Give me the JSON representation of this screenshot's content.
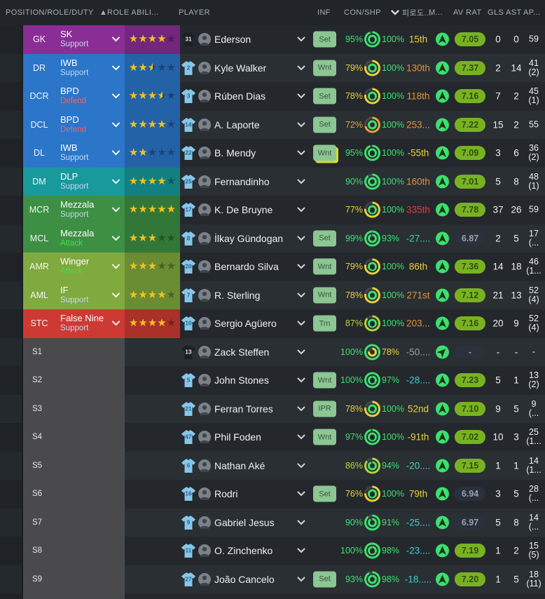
{
  "header": {
    "col_position": "POSITION/ROLE/DUTY",
    "sort_asc_icon": "▲",
    "col_role_ability": "ROLE ABILI...",
    "col_player": "PLAYER",
    "col_inf": "INF",
    "col_conshp": "CON/SHP",
    "col_fatigue": "피로도...",
    "col_morale": "M...",
    "col_avrat": "AV RAT",
    "col_gls": "GLS",
    "col_ast": "AST",
    "col_ap": "AP..."
  },
  "icons": {
    "sort_ascending": "triangle-up",
    "sort_descending": "chevron-down",
    "role_dropdown": "chevron-down",
    "player_dropdown": "chevron-down",
    "morale_up": "navigation-arrow-up",
    "morale_good": "navigation-arrow-upright",
    "condition_ring": "double-ring-donut",
    "shirt": "kit-shirt",
    "photo": "person-silhouette"
  },
  "colors": {
    "row_bg_a": "#24282d",
    "row_bg_b": "#2a2f34",
    "purple": "#8a2e96",
    "blue": "#2b76c9",
    "teal": "#18999b",
    "green": "#3d9043",
    "olive": "#80a93e",
    "red": "#cd3a33",
    "sub_gray": "#4a4a4c",
    "star_gold": "#f2c21d",
    "duty_support": "#c4d7ef",
    "duty_defend": "#f4626a",
    "duty_attack": "#3fe04a",
    "con_green": "#3ee06e",
    "con_lime": "#b5d435",
    "con_yellow": "#e8d23a",
    "con_orange": "#e8a432",
    "fat_yellow": "#e8d23a",
    "fat_orange": "#e89232",
    "fat_red": "#e83a3a",
    "fat_teal": "#3ad2c8",
    "fat_gray": "#9aa0a8",
    "pill_green_bg": "#79b221",
    "pill_green_text": "#2f4d0e",
    "pill_gray_bg": "#2a313c",
    "pill_gray_text": "#99a1ab",
    "inf_bg": "#8cc693",
    "inf_text": "#3a5340",
    "inf_shadow": "#d8d832",
    "morale_bg": "#3ce06e",
    "morale_arrow": "#16321f",
    "shirt_blue": "#85c7ea",
    "shirt_black": "#1e1f23",
    "shirt_num_blue": "#2b5f8a",
    "shirt_num_white": "#e8e8e8"
  },
  "rows": [
    {
      "pos": "GK",
      "role": "SK",
      "duty": "Support",
      "duty_style": "support",
      "color": "purple",
      "stars": 4,
      "shirt": "31",
      "shirt_style": "dark",
      "name": "Ederson",
      "inf": "Set",
      "inf_hl": false,
      "con": "95%",
      "con_style": "green",
      "shp": "100%",
      "shp_style": "green",
      "fat": "15th",
      "fat_style": "yellow",
      "morale": "up",
      "rating": "7.05",
      "rating_style": "green",
      "gls": "0",
      "ast": "0",
      "ap": [
        "59"
      ]
    },
    {
      "pos": "DR",
      "role": "IWB",
      "duty": "Support",
      "duty_style": "support",
      "color": "blue",
      "stars": 2.5,
      "shirt": "2",
      "shirt_style": "blue",
      "name": "Kyle Walker",
      "inf": "Wnt",
      "inf_hl": false,
      "con": "79%",
      "con_style": "yellow",
      "shp": "100%",
      "shp_style": "green",
      "fat": "130th",
      "fat_style": "orange",
      "morale": "up",
      "rating": "7.37",
      "rating_style": "green",
      "gls": "2",
      "ast": "14",
      "ap": [
        "41",
        "(2)"
      ]
    },
    {
      "pos": "DCR",
      "role": "BPD",
      "duty": "Defend",
      "duty_style": "defend",
      "color": "blue",
      "stars": 3.5,
      "shirt": "3",
      "shirt_style": "blue",
      "name": "Rúben Dias",
      "inf": "Set",
      "inf_hl": false,
      "con": "78%",
      "con_style": "yellow",
      "shp": "100%",
      "shp_style": "green",
      "fat": "118th",
      "fat_style": "orange",
      "morale": "up",
      "rating": "7.16",
      "rating_style": "green",
      "gls": "7",
      "ast": "2",
      "ap": [
        "45",
        "(1)"
      ]
    },
    {
      "pos": "DCL",
      "role": "BPD",
      "duty": "Defend",
      "duty_style": "defend",
      "color": "blue",
      "stars": 4,
      "shirt": "14",
      "shirt_style": "blue",
      "name": "A. Laporte",
      "inf": "Set",
      "inf_hl": false,
      "con": "72%",
      "con_style": "orange",
      "shp": "100%",
      "shp_style": "green",
      "fat": "253...",
      "fat_style": "orange",
      "morale": "up",
      "rating": "7.22",
      "rating_style": "green",
      "gls": "15",
      "ast": "2",
      "ap": [
        "55"
      ]
    },
    {
      "pos": "DL",
      "role": "IWB",
      "duty": "Support",
      "duty_style": "support",
      "color": "blue",
      "stars": 2,
      "shirt": "22",
      "shirt_style": "blue",
      "name": "B. Mendy",
      "inf": "Wnt",
      "inf_hl": true,
      "con": "95%",
      "con_style": "green",
      "shp": "100%",
      "shp_style": "green",
      "fat": "-55th",
      "fat_style": "yellow",
      "morale": "up",
      "rating": "7.09",
      "rating_style": "green",
      "gls": "3",
      "ast": "6",
      "ap": [
        "36",
        "(2)"
      ]
    },
    {
      "pos": "DM",
      "role": "DLP",
      "duty": "Support",
      "duty_style": "support",
      "color": "teal",
      "stars": 4,
      "shirt": "25",
      "shirt_style": "blue",
      "name": "Fernandinho",
      "inf": null,
      "inf_hl": false,
      "con": "90%",
      "con_style": "green",
      "shp": "100%",
      "shp_style": "green",
      "fat": "160th",
      "fat_style": "orange",
      "morale": "up",
      "rating": "7.01",
      "rating_style": "green",
      "gls": "5",
      "ast": "8",
      "ap": [
        "48",
        "(1)"
      ]
    },
    {
      "pos": "MCR",
      "role": "Mezzala",
      "duty": "Support",
      "duty_style": "support",
      "color": "green",
      "stars": 5,
      "shirt": "17",
      "shirt_style": "blue",
      "name": "K. De Bruyne",
      "inf": null,
      "inf_hl": false,
      "con": "77%",
      "con_style": "yellow",
      "shp": "100%",
      "shp_style": "green",
      "fat": "335th",
      "fat_style": "red",
      "morale": "up",
      "rating": "7.78",
      "rating_style": "green",
      "gls": "37",
      "ast": "26",
      "ap": [
        "59"
      ]
    },
    {
      "pos": "MCL",
      "role": "Mezzala",
      "duty": "Attack",
      "duty_style": "attack",
      "color": "green",
      "stars": 3,
      "shirt": "8",
      "shirt_style": "blue",
      "name": "İlkay Gündogan",
      "inf": "Set",
      "inf_hl": false,
      "con": "99%",
      "con_style": "green",
      "shp": "93%",
      "shp_style": "green",
      "fat": "-27....",
      "fat_style": "teal",
      "morale": "up",
      "rating": "6.87",
      "rating_style": "gray",
      "gls": "2",
      "ast": "5",
      "ap": [
        "17",
        "(..."
      ]
    },
    {
      "pos": "AMR",
      "role": "Winger",
      "duty": "Attack",
      "duty_style": "attack",
      "color": "olive",
      "stars": 3,
      "shirt": "20",
      "shirt_style": "blue",
      "name": "Bernardo Silva",
      "inf": "Wnt",
      "inf_hl": false,
      "con": "79%",
      "con_style": "yellow",
      "shp": "100%",
      "shp_style": "green",
      "fat": "86th",
      "fat_style": "yellow",
      "morale": "up",
      "rating": "7.36",
      "rating_style": "green",
      "gls": "14",
      "ast": "18",
      "ap": [
        "46",
        "(1..."
      ]
    },
    {
      "pos": "AML",
      "role": "IF",
      "duty": "Support",
      "duty_style": "support",
      "color": "olive",
      "stars": 4,
      "shirt": "7",
      "shirt_style": "blue",
      "name": "R. Sterling",
      "inf": "Wnt",
      "inf_hl": false,
      "con": "78%",
      "con_style": "yellow",
      "shp": "100%",
      "shp_style": "green",
      "fat": "271st",
      "fat_style": "orange",
      "morale": "up",
      "rating": "7.12",
      "rating_style": "green",
      "gls": "21",
      "ast": "13",
      "ap": [
        "52",
        "(4)"
      ]
    },
    {
      "pos": "STC",
      "role": "False Nine",
      "duty": "Support",
      "duty_style": "support",
      "color": "red",
      "stars": 4,
      "shirt": "10",
      "shirt_style": "blue",
      "name": "Sergio Agüero",
      "inf": "Trn",
      "inf_hl": false,
      "con": "87%",
      "con_style": "lime",
      "shp": "100%",
      "shp_style": "green",
      "fat": "203...",
      "fat_style": "orange",
      "morale": "up",
      "rating": "7.16",
      "rating_style": "green",
      "gls": "20",
      "ast": "9",
      "ap": [
        "52",
        "(4)"
      ]
    },
    {
      "sub": "S1",
      "shirt": "13",
      "shirt_style": "dark",
      "name": "Zack Steffen",
      "inf": null,
      "inf_hl": false,
      "con": "100%",
      "con_style": "green",
      "shp": "78%",
      "shp_style": "yellow",
      "fat": "-50....",
      "fat_style": "gray",
      "morale": "diag",
      "rating": "-",
      "rating_style": "gray",
      "gls": "-",
      "ast": "-",
      "ap": [
        "-"
      ]
    },
    {
      "sub": "S2",
      "shirt": "5",
      "shirt_style": "blue",
      "name": "John Stones",
      "inf": "Wnt",
      "inf_hl": false,
      "con": "100%",
      "con_style": "green",
      "shp": "97%",
      "shp_style": "green",
      "fat": "-28....",
      "fat_style": "teal",
      "morale": "up",
      "rating": "7.23",
      "rating_style": "green",
      "gls": "5",
      "ast": "1",
      "ap": [
        "13",
        "(2)"
      ]
    },
    {
      "sub": "S3",
      "shirt": "21",
      "shirt_style": "blue",
      "name": "Ferran Torres",
      "inf": "IPR",
      "inf_hl": false,
      "con": "78%",
      "con_style": "yellow",
      "shp": "100%",
      "shp_style": "green",
      "fat": "52nd",
      "fat_style": "yellow",
      "morale": "up",
      "rating": "7.10",
      "rating_style": "green",
      "gls": "9",
      "ast": "5",
      "ap": [
        "9",
        "(..."
      ]
    },
    {
      "sub": "S4",
      "shirt": "47",
      "shirt_style": "blue",
      "name": "Phil Foden",
      "inf": "Wnt",
      "inf_hl": false,
      "con": "97%",
      "con_style": "green",
      "shp": "100%",
      "shp_style": "green",
      "fat": "-91th",
      "fat_style": "yellow",
      "morale": "up",
      "rating": "7.02",
      "rating_style": "green",
      "gls": "10",
      "ast": "3",
      "ap": [
        "25",
        "(1..."
      ]
    },
    {
      "sub": "S5",
      "shirt": "6",
      "shirt_style": "blue",
      "name": "Nathan Aké",
      "inf": null,
      "inf_hl": false,
      "con": "86%",
      "con_style": "lime",
      "shp": "94%",
      "shp_style": "green",
      "fat": "-20....",
      "fat_style": "teal",
      "morale": "up",
      "rating": "7.15",
      "rating_style": "green",
      "gls": "1",
      "ast": "1",
      "ap": [
        "14",
        "(1..."
      ]
    },
    {
      "sub": "S6",
      "shirt": "16",
      "shirt_style": "blue",
      "name": "Rodri",
      "inf": "Set",
      "inf_hl": false,
      "con": "76%",
      "con_style": "yellow",
      "shp": "100%",
      "shp_style": "green",
      "fat": "79th",
      "fat_style": "yellow",
      "morale": "up",
      "rating": "6.94",
      "rating_style": "gray",
      "gls": "3",
      "ast": "5",
      "ap": [
        "28",
        "(..."
      ]
    },
    {
      "sub": "S7",
      "shirt": "9",
      "shirt_style": "blue",
      "name": "Gabriel Jesus",
      "inf": null,
      "inf_hl": false,
      "con": "90%",
      "con_style": "green",
      "shp": "91%",
      "shp_style": "green",
      "fat": "-25....",
      "fat_style": "teal",
      "morale": "up",
      "rating": "6.97",
      "rating_style": "gray",
      "gls": "5",
      "ast": "8",
      "ap": [
        "14",
        "(..."
      ]
    },
    {
      "sub": "S8",
      "shirt": "11",
      "shirt_style": "blue",
      "name": "O. Zinchenko",
      "inf": null,
      "inf_hl": false,
      "con": "100%",
      "con_style": "green",
      "shp": "98%",
      "shp_style": "green",
      "fat": "-23....",
      "fat_style": "teal",
      "morale": "up",
      "rating": "7.19",
      "rating_style": "green",
      "gls": "1",
      "ast": "2",
      "ap": [
        "15",
        "(5)"
      ]
    },
    {
      "sub": "S9",
      "shirt": "27",
      "shirt_style": "blue",
      "name": "João Cancelo",
      "inf": "Set",
      "inf_hl": false,
      "con": "93%",
      "con_style": "green",
      "shp": "98%",
      "shp_style": "green",
      "fat": "-18.....",
      "fat_style": "teal",
      "morale": "up",
      "rating": "7.20",
      "rating_style": "green",
      "gls": "1",
      "ast": "5",
      "ap": [
        "18",
        "(11)"
      ]
    }
  ]
}
